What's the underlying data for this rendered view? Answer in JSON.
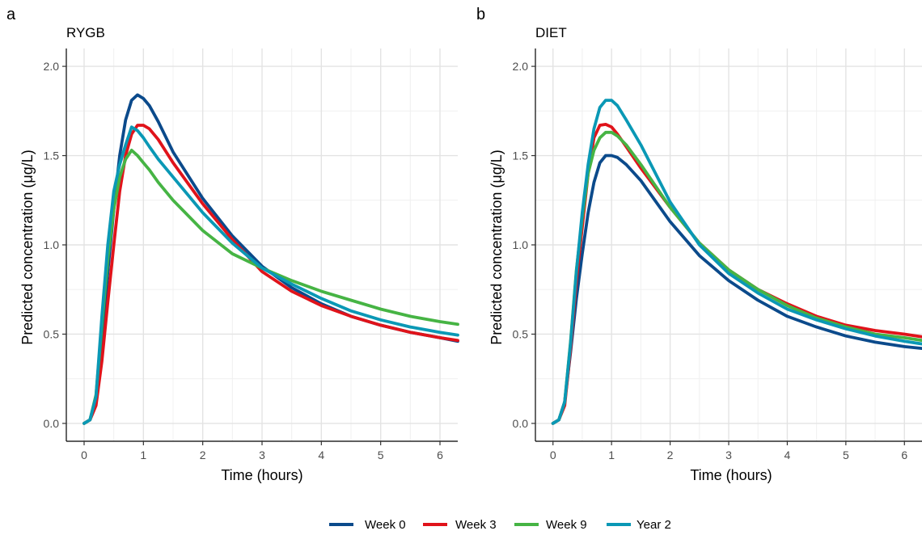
{
  "panels": [
    {
      "letter": "a",
      "title": "RYGB"
    },
    {
      "letter": "b",
      "title": "DIET"
    }
  ],
  "colors": {
    "Week 0": "#0b4a8b",
    "Week 3": "#e0131a",
    "Week 9": "#46b444",
    "Year 2": "#0a98b5"
  },
  "chart_data": [
    {
      "type": "line",
      "title": "RYGB",
      "xlabel": "Time (hours)",
      "ylabel": "Predicted concentration (μg/L)",
      "xlim": [
        -0.3,
        6.3
      ],
      "ylim": [
        -0.1,
        2.1
      ],
      "xticks": [
        "0",
        "1",
        "2",
        "3",
        "4",
        "5",
        "6"
      ],
      "yticks": [
        "0.0",
        "0.5",
        "1.0",
        "1.5",
        "2.0"
      ],
      "grid": true,
      "legend": "bottom",
      "series": [
        {
          "name": "Week 0",
          "x": [
            0,
            0.1,
            0.2,
            0.3,
            0.4,
            0.5,
            0.6,
            0.7,
            0.8,
            0.9,
            1.0,
            1.1,
            1.25,
            1.5,
            2.0,
            2.5,
            3.0,
            3.5,
            4.0,
            4.5,
            5.0,
            5.5,
            6.0,
            6.3
          ],
          "y": [
            0,
            0.02,
            0.15,
            0.45,
            0.85,
            1.2,
            1.5,
            1.7,
            1.81,
            1.84,
            1.82,
            1.78,
            1.69,
            1.52,
            1.26,
            1.05,
            0.88,
            0.76,
            0.67,
            0.6,
            0.55,
            0.51,
            0.48,
            0.46
          ]
        },
        {
          "name": "Week 3",
          "x": [
            0,
            0.1,
            0.2,
            0.3,
            0.4,
            0.5,
            0.6,
            0.7,
            0.8,
            0.9,
            1.0,
            1.1,
            1.25,
            1.5,
            2.0,
            2.5,
            3.0,
            3.5,
            4.0,
            4.5,
            5.0,
            5.5,
            6.0,
            6.3
          ],
          "y": [
            0,
            0.02,
            0.1,
            0.35,
            0.68,
            1.0,
            1.3,
            1.5,
            1.62,
            1.67,
            1.67,
            1.65,
            1.59,
            1.46,
            1.23,
            1.03,
            0.85,
            0.74,
            0.66,
            0.6,
            0.55,
            0.51,
            0.48,
            0.465
          ]
        },
        {
          "name": "Week 9",
          "x": [
            0,
            0.1,
            0.2,
            0.3,
            0.4,
            0.5,
            0.6,
            0.7,
            0.8,
            0.9,
            1.0,
            1.1,
            1.25,
            1.5,
            2.0,
            2.5,
            3.0,
            3.5,
            4.0,
            4.5,
            5.0,
            5.5,
            6.0,
            6.3
          ],
          "y": [
            0,
            0.02,
            0.16,
            0.55,
            0.92,
            1.2,
            1.38,
            1.48,
            1.53,
            1.5,
            1.46,
            1.42,
            1.35,
            1.25,
            1.08,
            0.95,
            0.87,
            0.8,
            0.74,
            0.69,
            0.64,
            0.6,
            0.57,
            0.555
          ]
        },
        {
          "name": "Year 2",
          "x": [
            0,
            0.1,
            0.2,
            0.3,
            0.4,
            0.5,
            0.6,
            0.7,
            0.8,
            0.9,
            1.0,
            1.1,
            1.25,
            1.5,
            2.0,
            2.5,
            3.0,
            3.5,
            4.0,
            4.5,
            5.0,
            5.5,
            6.0,
            6.3
          ],
          "y": [
            0,
            0.02,
            0.15,
            0.6,
            1.0,
            1.3,
            1.45,
            1.56,
            1.66,
            1.64,
            1.6,
            1.55,
            1.48,
            1.38,
            1.18,
            1.01,
            0.87,
            0.78,
            0.7,
            0.63,
            0.58,
            0.54,
            0.51,
            0.495
          ]
        }
      ]
    },
    {
      "type": "line",
      "title": "DIET",
      "xlabel": "Time (hours)",
      "ylabel": "Predicted concentration (μg/L)",
      "xlim": [
        -0.3,
        6.3
      ],
      "ylim": [
        -0.1,
        2.1
      ],
      "xticks": [
        "0",
        "1",
        "2",
        "3",
        "4",
        "5",
        "6"
      ],
      "yticks": [
        "0.0",
        "0.5",
        "1.0",
        "1.5",
        "2.0"
      ],
      "grid": true,
      "legend": "bottom",
      "series": [
        {
          "name": "Week 0",
          "x": [
            0,
            0.1,
            0.2,
            0.3,
            0.4,
            0.5,
            0.6,
            0.7,
            0.8,
            0.9,
            1.0,
            1.1,
            1.25,
            1.5,
            2.0,
            2.5,
            3.0,
            3.5,
            4.0,
            4.5,
            5.0,
            5.5,
            6.0,
            6.3
          ],
          "y": [
            0,
            0.02,
            0.12,
            0.4,
            0.7,
            0.95,
            1.18,
            1.35,
            1.46,
            1.5,
            1.5,
            1.49,
            1.45,
            1.36,
            1.13,
            0.94,
            0.8,
            0.69,
            0.6,
            0.54,
            0.49,
            0.455,
            0.43,
            0.42
          ]
        },
        {
          "name": "Week 3",
          "x": [
            0,
            0.1,
            0.2,
            0.3,
            0.4,
            0.5,
            0.6,
            0.7,
            0.8,
            0.9,
            1.0,
            1.1,
            1.25,
            1.5,
            2.0,
            2.5,
            3.0,
            3.5,
            4.0,
            4.5,
            5.0,
            5.5,
            6.0,
            6.3
          ],
          "y": [
            0,
            0.02,
            0.1,
            0.42,
            0.8,
            1.1,
            1.4,
            1.6,
            1.67,
            1.675,
            1.66,
            1.62,
            1.55,
            1.43,
            1.21,
            1.01,
            0.86,
            0.75,
            0.67,
            0.6,
            0.55,
            0.52,
            0.5,
            0.485
          ]
        },
        {
          "name": "Week 9",
          "x": [
            0,
            0.1,
            0.2,
            0.3,
            0.4,
            0.5,
            0.6,
            0.7,
            0.8,
            0.9,
            1.0,
            1.1,
            1.25,
            1.5,
            2.0,
            2.5,
            3.0,
            3.5,
            4.0,
            4.5,
            5.0,
            5.5,
            6.0,
            6.3
          ],
          "y": [
            0,
            0.02,
            0.12,
            0.46,
            0.86,
            1.15,
            1.4,
            1.53,
            1.6,
            1.63,
            1.63,
            1.61,
            1.56,
            1.45,
            1.21,
            1.01,
            0.86,
            0.75,
            0.66,
            0.59,
            0.54,
            0.5,
            0.48,
            0.465
          ]
        },
        {
          "name": "Year 2",
          "x": [
            0,
            0.1,
            0.2,
            0.3,
            0.4,
            0.5,
            0.6,
            0.7,
            0.8,
            0.9,
            1.0,
            1.1,
            1.25,
            1.5,
            2.0,
            2.5,
            3.0,
            3.5,
            4.0,
            4.5,
            5.0,
            5.5,
            6.0,
            6.3
          ],
          "y": [
            0,
            0.02,
            0.12,
            0.45,
            0.85,
            1.18,
            1.45,
            1.65,
            1.77,
            1.81,
            1.81,
            1.78,
            1.7,
            1.56,
            1.24,
            1.0,
            0.84,
            0.73,
            0.64,
            0.58,
            0.53,
            0.49,
            0.46,
            0.445
          ]
        }
      ]
    }
  ],
  "legend": [
    "Week 0",
    "Week 3",
    "Week 9",
    "Year 2"
  ]
}
